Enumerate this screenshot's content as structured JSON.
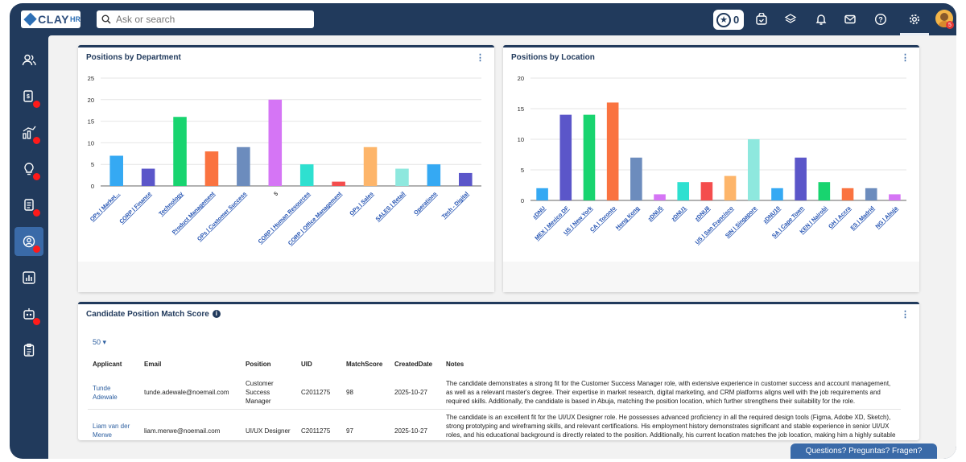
{
  "app": {
    "brand": "CLAY",
    "brand_suffix": "HR"
  },
  "search": {
    "placeholder": "Ask or search"
  },
  "topbar": {
    "star_count": "0",
    "avatar_badge": "5"
  },
  "footer": {
    "questions_label": "Questions? Preguntas? Fragen?"
  },
  "colors": [
    "#35a9f3",
    "#5b56c9",
    "#18d46f",
    "#fa7340",
    "#6c8cbd",
    "#d575f5",
    "#2ee0d0",
    "#f44d4d",
    "#fdb56a",
    "#8ee8de",
    "#35a9f3",
    "#5b56c9",
    "#18d46f",
    "#fa7340",
    "#6c8cbd",
    "#d575f5"
  ],
  "chart_data": [
    {
      "type": "bar",
      "title": "Positions by Department",
      "ylim": [
        0,
        25
      ],
      "yticks": [
        0,
        5,
        10,
        15,
        20,
        25
      ],
      "categories": [
        "OPs | Market...",
        "CORP | Finance",
        "Technology",
        "Product Management",
        "OPs | Customer Success",
        "5",
        "CORP | Human Resources",
        "CORP | Office Management",
        "OPs | Sales",
        "SALES | Retail",
        "Operations",
        "Tech - Digital"
      ],
      "values": [
        7,
        4,
        16,
        8,
        9,
        20,
        5,
        1,
        9,
        4,
        5,
        3
      ]
    },
    {
      "type": "bar",
      "title": "Positions by Location",
      "ylim": [
        0,
        20
      ],
      "yticks": [
        0,
        5,
        10,
        15,
        20
      ],
      "categories": [
        "zDNU",
        "MEX | Mexico DF",
        "US | New York",
        "CA | Toronto",
        "Hong Kong",
        "zDNU5",
        "zDNU1",
        "zDNU8",
        "US | San Francisco",
        "SIN | Singapore",
        "zDNU10",
        "SA | Cape Town",
        "KEN | Nairobi",
        "GH | Accra",
        "ES | Madrid",
        "NG | Abuja"
      ],
      "values": [
        2,
        14,
        14,
        16,
        7,
        1,
        3,
        3,
        4,
        10,
        2,
        7,
        3,
        2,
        2,
        1
      ]
    }
  ],
  "match": {
    "title": "Candidate Position Match Score",
    "page_size": "50",
    "columns": [
      "Applicant",
      "Email",
      "Position",
      "UID",
      "MatchScore",
      "CreatedDate",
      "Notes"
    ],
    "rows": [
      {
        "applicant": "Tunde Adewale",
        "email": "tunde.adewale@noemail.com",
        "position": "Customer Success Manager",
        "uid": "C2011275",
        "score": "98",
        "date": "2025-10-27",
        "notes": "The candidate demonstrates a strong fit for the Customer Success Manager role, with extensive experience in customer success and account management, as well as a relevant master's degree. Their expertise in market research, digital marketing, and CRM platforms aligns well with the job requirements and required skills. Additionally, the candidate is based in Abuja, matching the position location, which further strengthens their suitability for the role."
      },
      {
        "applicant": "Liam van der Merwe",
        "email": "liam.merwe@noemail.com",
        "position": "UI/UX Designer",
        "uid": "C2011275",
        "score": "97",
        "date": "2025-10-27",
        "notes": "The candidate is an excellent fit for the UI/UX Designer role. He possesses advanced proficiency in all the required design tools (Figma, Adobe XD, Sketch), strong prototyping and wireframing skills, and relevant certifications. His employment history demonstrates significant and stable experience in senior UI/UX roles, and his educational background is directly related to the position. Additionally, his current location matches the job location, making him a highly suitable candidate for the role."
      }
    ]
  }
}
